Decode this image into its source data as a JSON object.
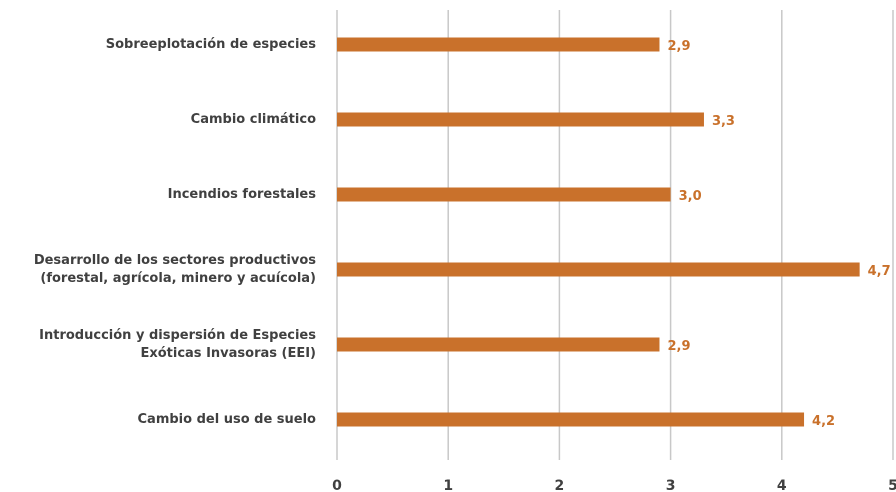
{
  "chart_data": {
    "type": "hbar",
    "categories": [
      [
        "Sobreeplotación de especies"
      ],
      [
        "Cambio climático"
      ],
      [
        "Incendios forestales"
      ],
      [
        "Desarrollo de los sectores productivos",
        "(forestal, agrícola, minero y acuícola)"
      ],
      [
        "Introducción y dispersión de Especies",
        "Exóticas Invasoras (EEI)"
      ],
      [
        "Cambio del uso de suelo"
      ]
    ],
    "values": [
      2.9,
      3.3,
      3.0,
      4.7,
      2.9,
      4.2
    ],
    "value_labels": [
      "2,9",
      "3,3",
      "3,0",
      "4,7",
      "2,9",
      "4,2"
    ],
    "color": "#c9712b",
    "xlim": [
      0,
      5
    ],
    "xticks": [
      0,
      1,
      2,
      3,
      4,
      5
    ],
    "grid": true
  }
}
